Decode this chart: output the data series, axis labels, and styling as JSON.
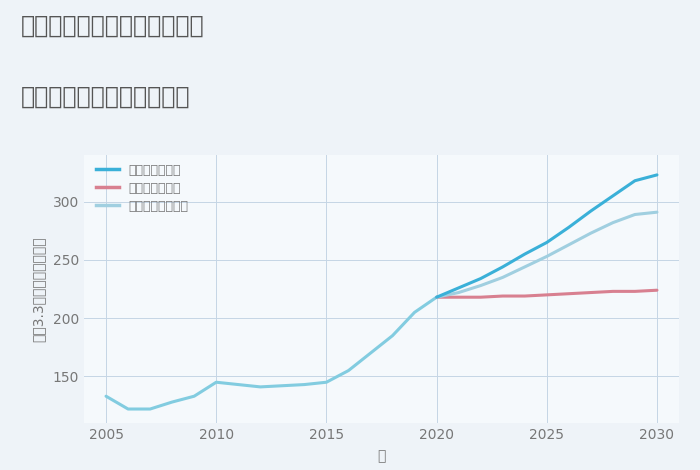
{
  "title_line1": "神奈川県横浜市中区竹之丸の",
  "title_line2": "中古マンションの価格推移",
  "xlabel": "年",
  "ylabel": "坪（3.3㎡）単価（万円）",
  "bg_color": "#eef3f8",
  "plot_bg_color": "#f5f9fc",
  "grid_color": "#c5d5e5",
  "title_color": "#555555",
  "axis_label_color": "#777777",
  "tick_label_color": "#777777",
  "xlim": [
    2004,
    2031
  ],
  "ylim": [
    110,
    340
  ],
  "xticks": [
    2005,
    2010,
    2015,
    2020,
    2025,
    2030
  ],
  "yticks": [
    150,
    200,
    250,
    300
  ],
  "historical_years": [
    2005,
    2006,
    2007,
    2008,
    2009,
    2010,
    2011,
    2012,
    2013,
    2014,
    2015,
    2016,
    2017,
    2018,
    2019,
    2020
  ],
  "historical_values": [
    133,
    122,
    122,
    128,
    133,
    145,
    143,
    141,
    142,
    143,
    145,
    155,
    170,
    185,
    205,
    218
  ],
  "good_years": [
    2020,
    2021,
    2022,
    2023,
    2024,
    2025,
    2026,
    2027,
    2028,
    2029,
    2030
  ],
  "good_values": [
    218,
    226,
    234,
    244,
    255,
    265,
    278,
    292,
    305,
    318,
    323
  ],
  "bad_years": [
    2020,
    2021,
    2022,
    2023,
    2024,
    2025,
    2026,
    2027,
    2028,
    2029,
    2030
  ],
  "bad_values": [
    218,
    218,
    218,
    219,
    219,
    220,
    221,
    222,
    223,
    223,
    224
  ],
  "normal_years": [
    2020,
    2021,
    2022,
    2023,
    2024,
    2025,
    2026,
    2027,
    2028,
    2029,
    2030
  ],
  "normal_values": [
    218,
    222,
    228,
    235,
    244,
    253,
    263,
    273,
    282,
    289,
    291
  ],
  "color_historical": "#82cce0",
  "color_good": "#3ab0d8",
  "color_bad": "#d88090",
  "color_normal": "#a0cfe0",
  "legend_labels": [
    "グッドシナリオ",
    "バッドシナリオ",
    "ノーマルシナリオ"
  ],
  "legend_colors": [
    "#3ab0d8",
    "#d88090",
    "#a0cfe0"
  ],
  "linewidth": 2.2,
  "title_fontsize": 17,
  "legend_fontsize": 9,
  "tick_fontsize": 10,
  "axis_label_fontsize": 10
}
